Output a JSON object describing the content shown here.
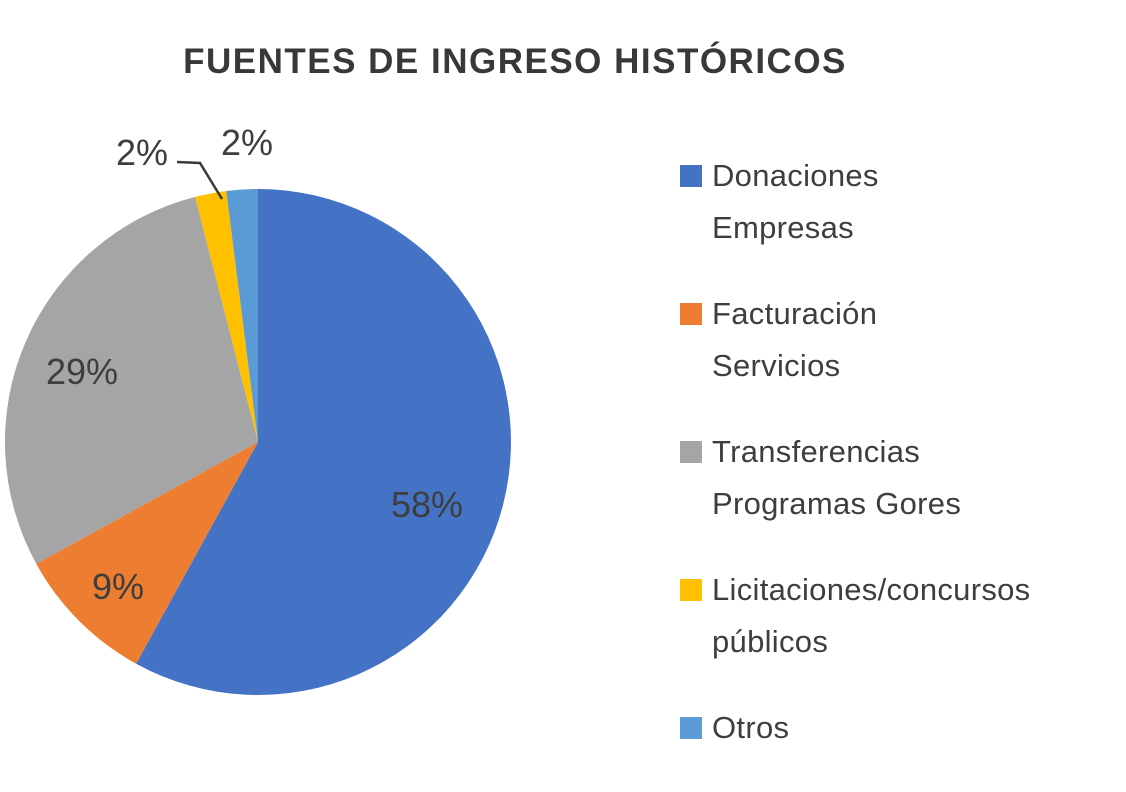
{
  "page": {
    "background_color": "#ffffff",
    "text_color": "#3e3e3e"
  },
  "chart_data": {
    "type": "pie",
    "title": "FUENTES DE INGRESO HISTÓRICOS",
    "start_angle_deg": 0,
    "direction": "clockwise",
    "legend_position": "right",
    "grid": false,
    "total_pct": 100,
    "slices": [
      {
        "label": "Donaciones Empresas",
        "legend_lines": [
          "Donaciones",
          "Empresas"
        ],
        "value_pct": 58,
        "data_label": "58%",
        "data_label_placement": "inside",
        "color": "#4472C4"
      },
      {
        "label": "Facturación Servicios",
        "legend_lines": [
          "Facturación",
          "Servicios"
        ],
        "value_pct": 9,
        "data_label": "9%",
        "data_label_placement": "inside",
        "color": "#ED7D31"
      },
      {
        "label": "Transferencias Programas Gores",
        "legend_lines": [
          "Transferencias",
          "Programas Gores"
        ],
        "value_pct": 29,
        "data_label": "29%",
        "data_label_placement": "inside",
        "color": "#A5A5A5"
      },
      {
        "label": "Licitaciones/concursos públicos",
        "legend_lines": [
          "Licitaciones/concursos",
          "públicos"
        ],
        "value_pct": 2,
        "data_label": "2%",
        "data_label_placement": "outside-with-leader",
        "color": "#FFC000"
      },
      {
        "label": "Otros",
        "legend_lines": [
          "Otros"
        ],
        "value_pct": 2,
        "data_label": "2%",
        "data_label_placement": "outside",
        "color": "#5B9BD5"
      }
    ]
  }
}
